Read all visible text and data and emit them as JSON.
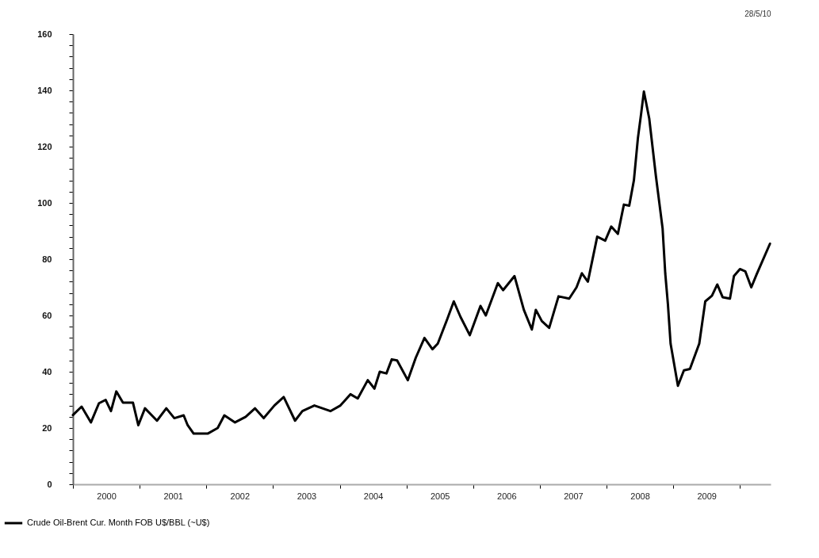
{
  "chart_data": {
    "type": "line",
    "annotations": [
      "28/5/10"
    ],
    "x": [
      2000.0,
      2000.13,
      2000.27,
      2000.39,
      2000.49,
      2000.57,
      2000.65,
      2000.75,
      2000.9,
      2000.98,
      2001.08,
      2001.26,
      2001.4,
      2001.52,
      2001.66,
      2001.72,
      2001.81,
      2002.02,
      2002.17,
      2002.27,
      2002.43,
      2002.59,
      2002.73,
      2002.86,
      2003.02,
      2003.16,
      2003.33,
      2003.44,
      2003.62,
      2003.86,
      2004.01,
      2004.16,
      2004.27,
      2004.42,
      2004.52,
      2004.6,
      2004.7,
      2004.78,
      2004.86,
      2005.02,
      2005.14,
      2005.27,
      2005.39,
      2005.47,
      2005.61,
      2005.71,
      2005.81,
      2005.95,
      2006.11,
      2006.19,
      2006.37,
      2006.45,
      2006.62,
      2006.76,
      2006.88,
      2006.94,
      2007.03,
      2007.14,
      2007.28,
      2007.44,
      2007.55,
      2007.63,
      2007.72,
      2007.86,
      2007.98,
      2008.07,
      2008.17,
      2008.26,
      2008.34,
      2008.41,
      2008.47,
      2008.52,
      2008.56,
      2008.64,
      2008.74,
      2008.84,
      2008.88,
      2008.92,
      2008.96,
      2009.07,
      2009.16,
      2009.25,
      2009.39,
      2009.48,
      2009.58,
      2009.66,
      2009.74,
      2009.85,
      2009.91,
      2010.0,
      2010.08,
      2010.17,
      2010.25,
      2010.45
    ],
    "series": [
      {
        "name": "Crude Oil-Brent Cur. Month FOB U$/BBL (~U$)",
        "color": "#000000",
        "values": [
          24.6,
          27.6,
          22,
          28.8,
          30,
          26,
          33,
          29,
          29,
          21,
          27,
          22.6,
          27,
          23.5,
          24.5,
          21,
          18,
          18,
          20,
          24.5,
          22,
          24,
          27,
          23.5,
          28,
          31,
          22.6,
          26,
          28,
          26,
          28,
          32,
          30.5,
          37,
          34,
          40,
          39.4,
          44.4,
          44,
          37,
          45,
          52,
          48,
          50,
          58.6,
          65,
          59.5,
          53,
          63.4,
          60,
          71.5,
          69,
          74,
          62,
          55,
          62,
          58,
          55.6,
          66.8,
          66,
          70,
          75,
          72,
          88,
          86.6,
          91.6,
          89,
          99.4,
          99,
          108,
          123,
          132,
          139.6,
          130,
          109.5,
          91,
          75,
          64,
          50,
          35,
          40.5,
          41,
          50,
          65,
          67,
          71,
          66.5,
          66,
          74,
          76.5,
          75.7,
          70,
          74.6,
          85.5
        ]
      }
    ],
    "xlim": [
      2000,
      2010.46
    ],
    "xticks": [
      {
        "value": 2000,
        "label": null
      },
      {
        "value": 2000.5,
        "label": "2000"
      },
      {
        "value": 2001,
        "label": null
      },
      {
        "value": 2001.5,
        "label": "2001"
      },
      {
        "value": 2002,
        "label": null
      },
      {
        "value": 2002.5,
        "label": "2002"
      },
      {
        "value": 2003,
        "label": null
      },
      {
        "value": 2003.5,
        "label": "2003"
      },
      {
        "value": 2004,
        "label": null
      },
      {
        "value": 2004.5,
        "label": "2004"
      },
      {
        "value": 2005,
        "label": null
      },
      {
        "value": 2005.5,
        "label": "2005"
      },
      {
        "value": 2006,
        "label": null
      },
      {
        "value": 2006.5,
        "label": "2006"
      },
      {
        "value": 2007,
        "label": null
      },
      {
        "value": 2007.5,
        "label": "2007"
      },
      {
        "value": 2008,
        "label": null
      },
      {
        "value": 2008.5,
        "label": "2008"
      },
      {
        "value": 2009,
        "label": null
      },
      {
        "value": 2009.5,
        "label": "2009"
      },
      {
        "value": 2010,
        "label": null
      }
    ],
    "ylim": [
      0,
      160
    ],
    "yticks": [
      0,
      {
        "value": 4,
        "label": null
      },
      {
        "value": 8,
        "label": null
      },
      {
        "value": 12,
        "label": null
      },
      {
        "value": 16,
        "label": null
      },
      20,
      {
        "value": 24,
        "label": null
      },
      {
        "value": 28,
        "label": null
      },
      {
        "value": 32,
        "label": null
      },
      {
        "value": 36,
        "label": null
      },
      40,
      {
        "value": 44,
        "label": null
      },
      {
        "value": 48,
        "label": null
      },
      {
        "value": 52,
        "label": null
      },
      {
        "value": 56,
        "label": null
      },
      60,
      {
        "value": 64,
        "label": null
      },
      {
        "value": 68,
        "label": null
      },
      {
        "value": 72,
        "label": null
      },
      {
        "value": 76,
        "label": null
      },
      80,
      {
        "value": 84,
        "label": null
      },
      {
        "value": 88,
        "label": null
      },
      {
        "value": 92,
        "label": null
      },
      {
        "value": 96,
        "label": null
      },
      100,
      {
        "value": 104,
        "label": null
      },
      {
        "value": 108,
        "label": null
      },
      {
        "value": 112,
        "label": null
      },
      {
        "value": 116,
        "label": null
      },
      120,
      {
        "value": 124,
        "label": null
      },
      {
        "value": 128,
        "label": null
      },
      {
        "value": 132,
        "label": null
      },
      {
        "value": 136,
        "label": null
      },
      140,
      {
        "value": 144,
        "label": null
      },
      {
        "value": 148,
        "label": null
      },
      {
        "value": 152,
        "label": null
      },
      {
        "value": 156,
        "label": null
      },
      160
    ],
    "legend": "bottom left",
    "grid": false,
    "marker": "none",
    "line_style": "solid"
  }
}
